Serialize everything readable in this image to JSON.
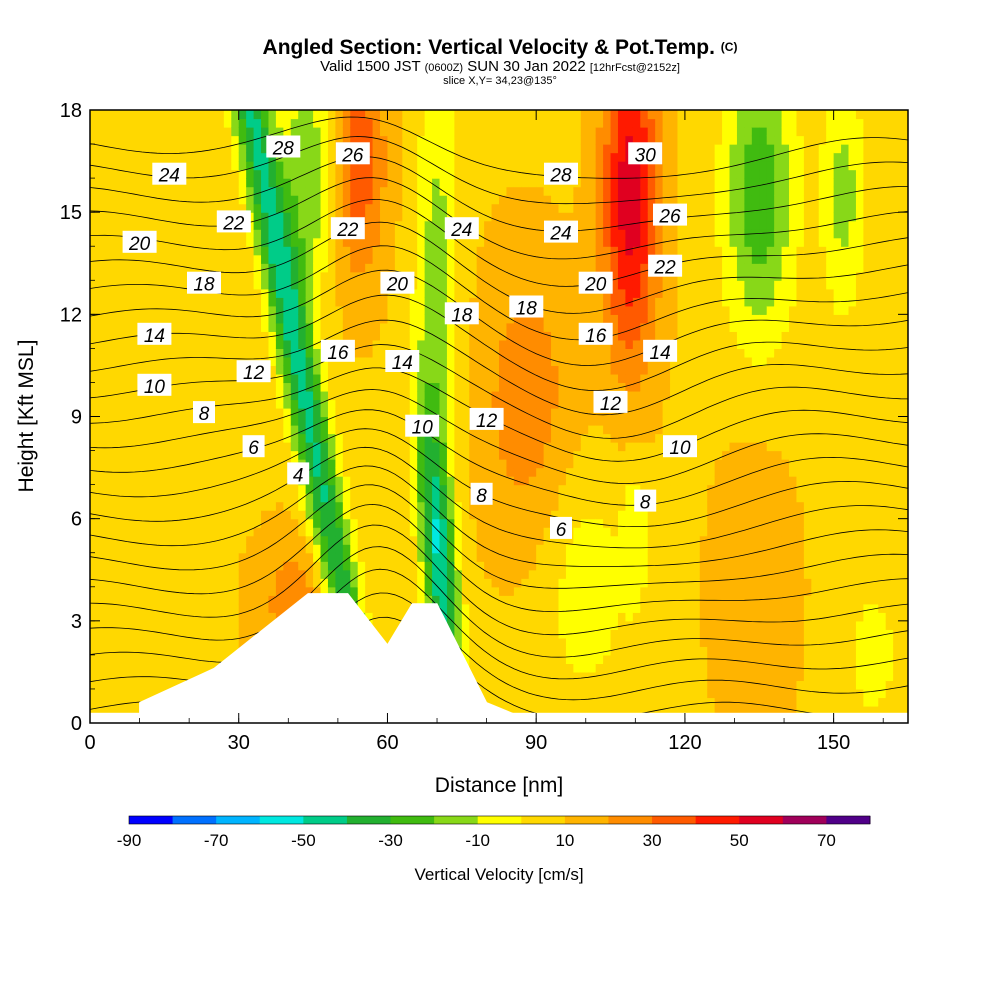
{
  "title": {
    "main": "Angled Section: Vertical Velocity & Pot.Temp.",
    "copyright": "(C)",
    "valid_prefix": "Valid 1500 JST",
    "valid_utc": "(0600Z)",
    "valid_date": "SUN 30 Jan 2022",
    "valid_fcst": "[12hrFcst@2152z]",
    "slice": "slice X,Y= 34,23@135°"
  },
  "chart_data": {
    "type": "heatmap",
    "xlabel": "Distance [nm]",
    "ylabel": "Height [Kft MSL]",
    "xlim": [
      0,
      165
    ],
    "ylim": [
      0,
      18
    ],
    "x_ticks": [
      0,
      30,
      60,
      90,
      120,
      150
    ],
    "y_ticks": [
      0,
      3,
      6,
      9,
      12,
      15,
      18
    ],
    "colorbar": {
      "title": "Vertical Velocity [cm/s]",
      "bounds": [
        -90,
        -80,
        -70,
        -60,
        -50,
        -40,
        -30,
        -20,
        -10,
        0,
        10,
        20,
        30,
        40,
        50,
        60,
        70,
        80
      ],
      "colors": [
        "#0000ff",
        "#0070ff",
        "#00b4ff",
        "#00e8e0",
        "#00cc88",
        "#22b030",
        "#40bb10",
        "#88d818",
        "#ffff00",
        "#ffd800",
        "#ffb400",
        "#ff8c00",
        "#ff5a00",
        "#ff1a00",
        "#e00020",
        "#a0005a",
        "#500088"
      ],
      "labels": [
        -90,
        -70,
        -50,
        -30,
        -10,
        10,
        30,
        50,
        70
      ]
    },
    "terrain": [
      [
        0,
        0
      ],
      [
        10,
        0
      ],
      [
        10,
        0.6
      ],
      [
        25,
        1.6
      ],
      [
        44,
        3.8
      ],
      [
        52,
        3.8
      ],
      [
        60,
        2.3
      ],
      [
        65,
        3.5
      ],
      [
        70,
        3.5
      ],
      [
        80,
        0.6
      ],
      [
        90,
        0
      ],
      [
        165,
        0
      ]
    ],
    "contour_labels": [
      {
        "text": "28",
        "x": 39,
        "y": 16.9
      },
      {
        "text": "26",
        "x": 53,
        "y": 16.7
      },
      {
        "text": "24",
        "x": 16,
        "y": 16.1
      },
      {
        "text": "22",
        "x": 29,
        "y": 14.7
      },
      {
        "text": "22",
        "x": 52,
        "y": 14.5
      },
      {
        "text": "24",
        "x": 75,
        "y": 14.5
      },
      {
        "text": "28",
        "x": 95,
        "y": 16.1
      },
      {
        "text": "30",
        "x": 112,
        "y": 16.7
      },
      {
        "text": "26",
        "x": 117,
        "y": 14.9
      },
      {
        "text": "24",
        "x": 95,
        "y": 14.4
      },
      {
        "text": "22",
        "x": 116,
        "y": 13.4
      },
      {
        "text": "20",
        "x": 10,
        "y": 14.1
      },
      {
        "text": "20",
        "x": 62,
        "y": 12.9
      },
      {
        "text": "20",
        "x": 102,
        "y": 12.9
      },
      {
        "text": "18",
        "x": 23,
        "y": 12.9
      },
      {
        "text": "18",
        "x": 75,
        "y": 12.0
      },
      {
        "text": "18",
        "x": 88,
        "y": 12.2
      },
      {
        "text": "16",
        "x": 50,
        "y": 10.9
      },
      {
        "text": "16",
        "x": 102,
        "y": 11.4
      },
      {
        "text": "14",
        "x": 13,
        "y": 11.4
      },
      {
        "text": "14",
        "x": 63,
        "y": 10.6
      },
      {
        "text": "14",
        "x": 115,
        "y": 10.9
      },
      {
        "text": "12",
        "x": 33,
        "y": 10.3
      },
      {
        "text": "12",
        "x": 80,
        "y": 8.9
      },
      {
        "text": "12",
        "x": 105,
        "y": 9.4
      },
      {
        "text": "10",
        "x": 13,
        "y": 9.9
      },
      {
        "text": "10",
        "x": 67,
        "y": 8.7
      },
      {
        "text": "10",
        "x": 119,
        "y": 8.1
      },
      {
        "text": "8",
        "x": 23,
        "y": 9.1
      },
      {
        "text": "8",
        "x": 79,
        "y": 6.7
      },
      {
        "text": "8",
        "x": 112,
        "y": 6.5
      },
      {
        "text": "6",
        "x": 33,
        "y": 8.1
      },
      {
        "text": "6",
        "x": 95,
        "y": 5.7
      },
      {
        "text": "4",
        "x": 42,
        "y": 7.3
      }
    ]
  }
}
